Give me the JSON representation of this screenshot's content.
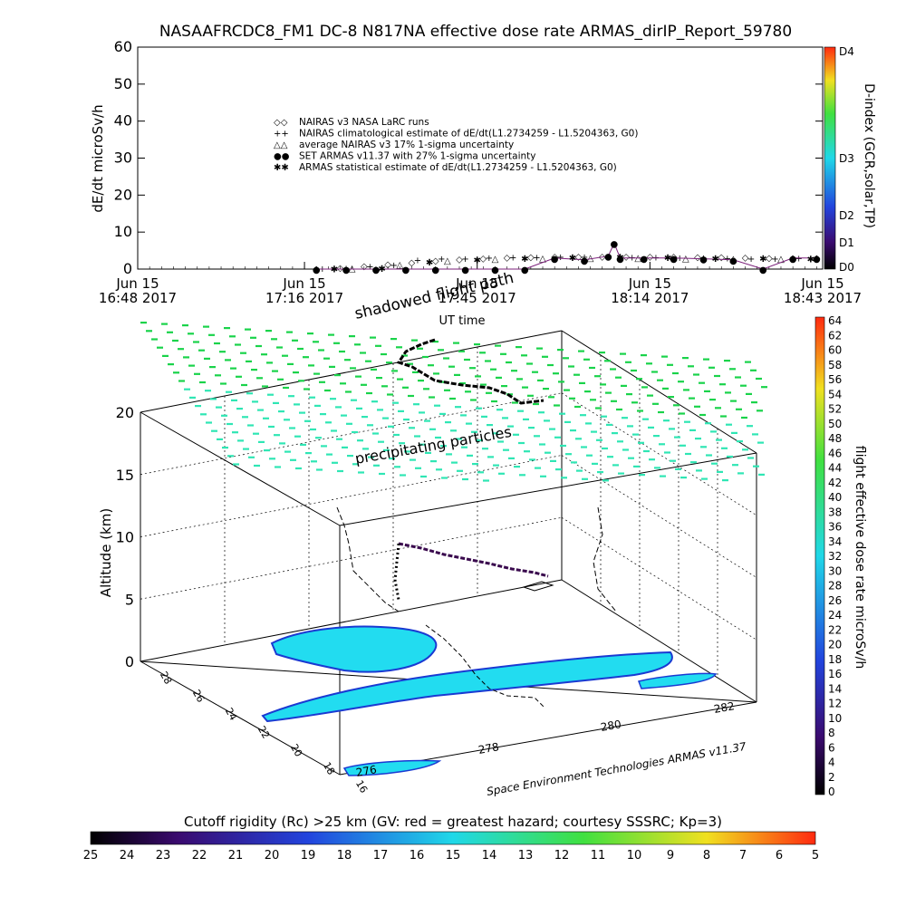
{
  "title": "NASAAFRCDC8_FM1 DC-8    N817NA effective dose rate ARMAS_dirIP_Report_59780",
  "top_plot": {
    "ylabel": "dE/dt microSv/h",
    "xlabel": "UT time",
    "legend": [
      {
        "symbol": "◇",
        "label": "NAIRAS v3 NASA LaRC runs"
      },
      {
        "symbol": "+",
        "label": "NAIRAS climatological estimate of dE/dt(L1.2734259 - L1.5204363, G0)"
      },
      {
        "symbol": "△",
        "label": "average NAIRAS v3 17% 1-sigma uncertainty"
      },
      {
        "symbol": "●",
        "label": "SET ARMAS v11.37 with 27% 1-sigma uncertainty",
        "color": "#1a2dd6"
      },
      {
        "symbol": "✱",
        "label": "ARMAS statistical estimate of dE/dt(L1.2734259 - L1.5204363, G0)"
      }
    ],
    "x_ticks": [
      {
        "line1": "Jun 15",
        "line2": "16:48 2017"
      },
      {
        "line1": "Jun 15",
        "line2": "17:16 2017"
      },
      {
        "line1": "Jun 15",
        "line2": "17:45 2017"
      },
      {
        "line1": "Jun 15",
        "line2": "18:14 2017"
      },
      {
        "line1": "Jun 15",
        "line2": "18:43 2017"
      }
    ],
    "right_colorbar": {
      "label": "D-index (GCR,solar,TP)",
      "ticks": [
        "D4",
        "D3",
        "D2",
        "D1",
        "D0"
      ]
    }
  },
  "chart_data": [
    {
      "type": "scatter",
      "title": "NASAAFRCDC8_FM1 DC-8    N817NA effective dose rate ARMAS_dirIP_Report_59780",
      "ylabel": "dE/dt microSv/h",
      "xlabel": "UT time",
      "x_unit": "UT minutes since 16:48",
      "xlim": [
        0,
        115
      ],
      "ylim": [
        0,
        60
      ],
      "yticks": [
        0,
        10,
        20,
        30,
        40,
        50,
        60
      ],
      "series": [
        {
          "name": "NAIRAS v3 NASA LaRC runs",
          "x": [
            30,
            34,
            38,
            42,
            46,
            50,
            54,
            58,
            62,
            66,
            70,
            74,
            78,
            82,
            86,
            90,
            94,
            98,
            102,
            106,
            110,
            114
          ],
          "y": [
            0.3,
            0.5,
            1.0,
            1.5,
            2.0,
            2.4,
            2.8,
            3.1,
            3.3,
            3.4,
            3.5,
            3.5,
            3.6,
            3.6,
            3.5,
            3.5,
            3.4,
            3.4,
            3.3,
            3.2,
            3.2,
            3.2
          ]
        },
        {
          "name": "NAIRAS climatological estimate of dE/dt(L1.2734259 - L1.5204363, G0)",
          "x": [
            31,
            35,
            39,
            43,
            47,
            51,
            55,
            59,
            63,
            67,
            71,
            75,
            79,
            83,
            87,
            91,
            95,
            99,
            103,
            107,
            111,
            114
          ],
          "y": [
            0.2,
            0.4,
            0.8,
            1.2,
            2.6,
            3.0,
            3.0,
            3.2,
            3.3,
            3.3,
            3.4,
            3.4,
            3.4,
            3.3,
            3.3,
            3.2,
            3.2,
            3.1,
            3.0,
            3.0,
            3.1,
            3.1
          ]
        },
        {
          "name": "average NAIRAS v3 17% 1-sigma uncertainty",
          "x": [
            36,
            44,
            52,
            60,
            68,
            76,
            84,
            92,
            100,
            108
          ],
          "y": [
            0.4,
            1.3,
            2.5,
            2.9,
            3.1,
            3.2,
            3.2,
            3.1,
            3.0,
            2.9
          ]
        },
        {
          "name": "SET ARMAS v11.37 with 27% 1-sigma uncertainty",
          "x": [
            30,
            35,
            40,
            45,
            50,
            55,
            60,
            65,
            70,
            75,
            79,
            80,
            81,
            85,
            90,
            95,
            100,
            105,
            110,
            114
          ],
          "y": [
            0.0,
            0.0,
            0.0,
            0.0,
            0.0,
            0.0,
            0.0,
            0.0,
            3.0,
            2.5,
            3.5,
            7.0,
            3.0,
            3.0,
            3.0,
            2.8,
            2.5,
            0.0,
            3.0,
            3.0
          ]
        },
        {
          "name": "ARMAS statistical estimate of dE/dt(L1.2734259 - L1.5204363, G0)",
          "x": [
            33,
            41,
            49,
            57,
            65,
            73,
            81,
            89,
            97,
            105,
            113
          ],
          "y": [
            0.1,
            0.3,
            2.0,
            2.6,
            3.0,
            3.2,
            3.3,
            3.2,
            3.0,
            2.9,
            2.8
          ]
        }
      ]
    },
    {
      "type": "scatter",
      "title": "",
      "zlabel": "Altitude (km)",
      "zlim": [
        0,
        20
      ],
      "zticks": [
        0,
        5,
        10,
        15,
        20
      ],
      "latitude_ticks": [
        16,
        18,
        20,
        22,
        24,
        26,
        28
      ],
      "longitude_ticks": [
        276,
        278,
        280,
        282
      ],
      "colorbar_label": "flight effective dose rate microSv/h",
      "colorbar_range": [
        0,
        64
      ],
      "flight_path": [
        {
          "lon": 276.0,
          "lat": 28.0,
          "alt_km": 0.5
        },
        {
          "lon": 276.5,
          "lat": 26.0,
          "alt_km": 9.0
        },
        {
          "lon": 277.5,
          "lat": 25.0,
          "alt_km": 10.5
        },
        {
          "lon": 279.0,
          "lat": 24.0,
          "alt_km": 10.5
        },
        {
          "lon": 280.5,
          "lat": 23.0,
          "alt_km": 11.5
        },
        {
          "lon": 281.0,
          "lat": 22.0,
          "alt_km": 11.0
        },
        {
          "lon": 279.5,
          "lat": 24.5,
          "alt_km": 4.0
        }
      ]
    }
  ],
  "bottom_plot": {
    "zlabel": "Altitude (km)",
    "zticks": [
      "0",
      "5",
      "10",
      "15",
      "20"
    ],
    "lat_ticks": [
      "28",
      "26",
      "24",
      "22",
      "20",
      "18",
      "16"
    ],
    "lon_ticks": [
      "276",
      "278",
      "280",
      "282"
    ],
    "annotations": {
      "shadowed_flight_path": "shadowed flight path",
      "precipitating_particles": "precipitating particles",
      "credit": "Space Environment Technologies ARMAS v11.37"
    },
    "right_colorbar": {
      "label": "flight effective dose rate microSv/h",
      "ticks": [
        "64",
        "62",
        "60",
        "58",
        "56",
        "54",
        "52",
        "50",
        "48",
        "46",
        "44",
        "42",
        "40",
        "38",
        "36",
        "34",
        "32",
        "30",
        "28",
        "26",
        "24",
        "22",
        "20",
        "18",
        "16",
        "14",
        "12",
        "10",
        "8",
        "6",
        "4",
        "2",
        "0"
      ]
    }
  },
  "bottom_colorbar": {
    "title": "Cutoff rigidity (Rc) >25 km (GV: red = greatest hazard; courtesy SSSRC; Kp=3)",
    "ticks": [
      "25",
      "24",
      "23",
      "22",
      "21",
      "20",
      "19",
      "18",
      "17",
      "16",
      "15",
      "14",
      "13",
      "12",
      "11",
      "10",
      "9",
      "8",
      "7",
      "6",
      "5"
    ]
  },
  "colors": {
    "dose_green": "#19d34a",
    "dose_cyan": "#2fe6b4",
    "rc_cyan": "#22dcf0",
    "rc_blue": "#1a3ad2",
    "armas_point": "#7b1f7a"
  }
}
